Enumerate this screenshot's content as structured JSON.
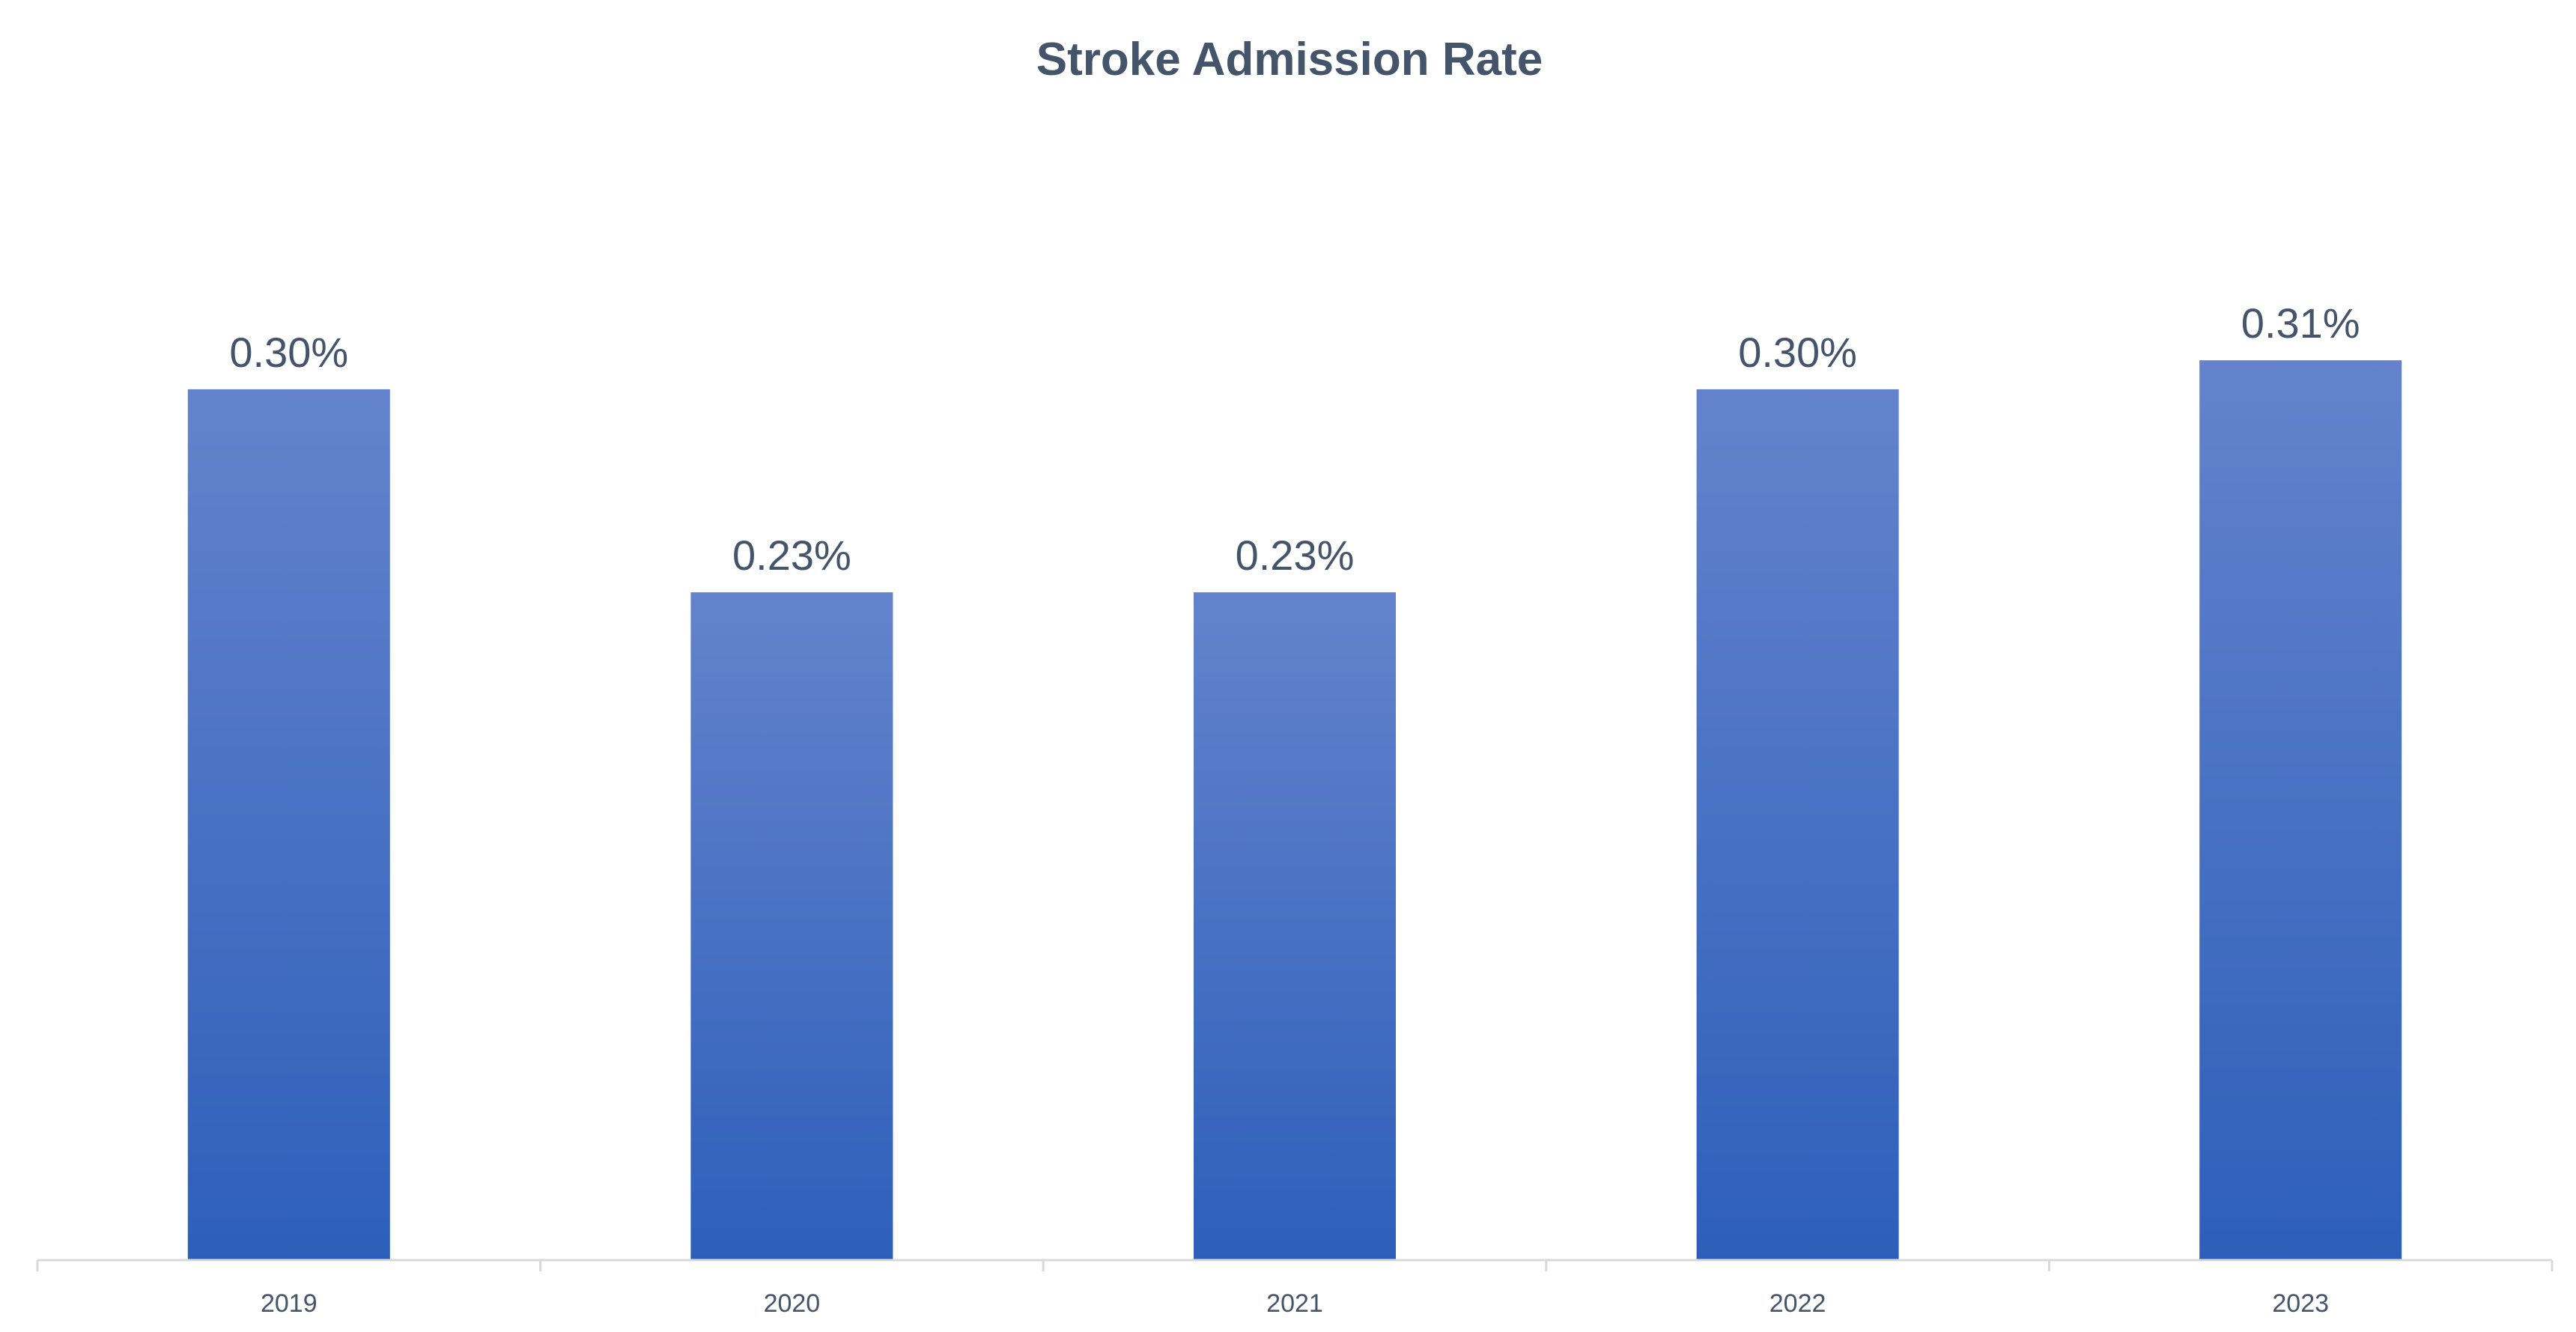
{
  "chart_data": {
    "type": "bar",
    "title": "Stroke Admission Rate",
    "xlabel": "",
    "ylabel": "",
    "categories": [
      "2019",
      "2020",
      "2021",
      "2022",
      "2023"
    ],
    "values": [
      0.3,
      0.23,
      0.23,
      0.3,
      0.31
    ],
    "data_labels": [
      "0.30%",
      "0.23%",
      "0.23%",
      "0.30%",
      "0.31%"
    ],
    "value_unit": "%",
    "ylim": [
      0,
      0.34
    ],
    "grid": false,
    "legend": "none",
    "colors": {
      "bar_top": "#6483cc",
      "bar_bottom": "#2d5fba",
      "axis": "#d9d9d9",
      "text": "#44546a"
    }
  }
}
